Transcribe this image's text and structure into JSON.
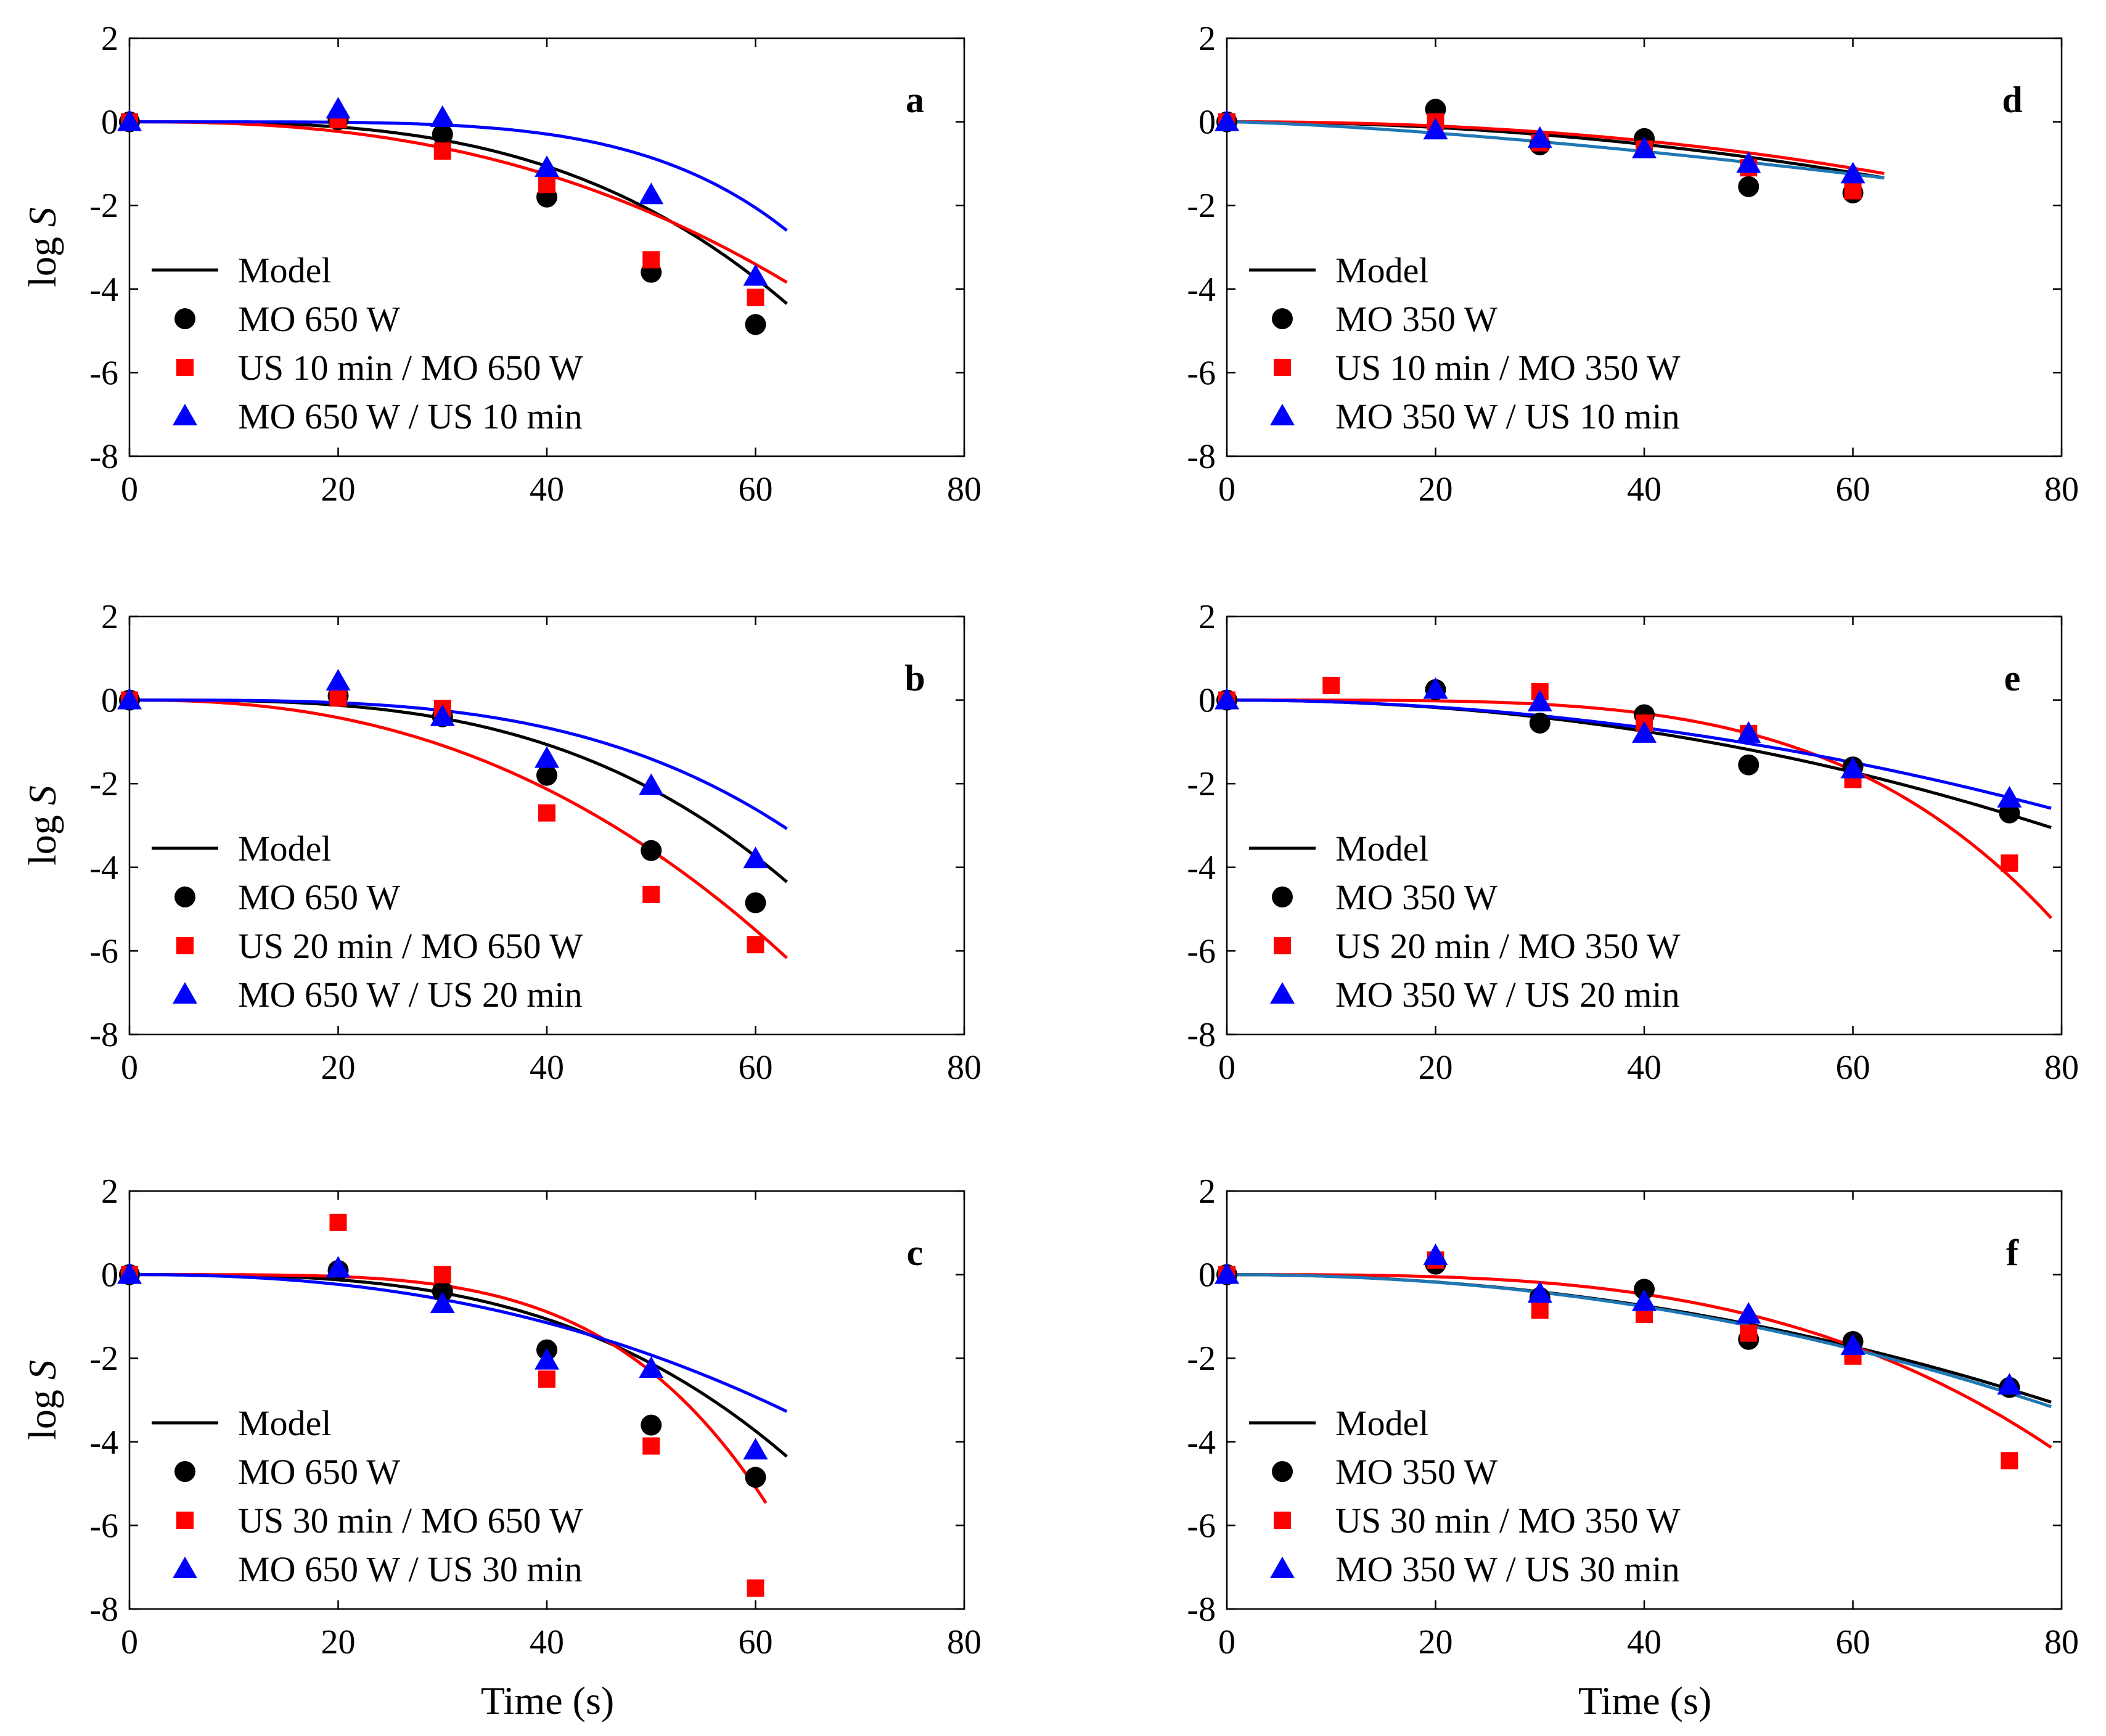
{
  "figure": {
    "xlabel": "Time (s)",
    "ylabel_main": "log",
    "ylabel_var": "S"
  },
  "colors": {
    "black": "#000000",
    "red": "#ff0000",
    "blue": "#0000ff",
    "teal": "#1f77b4"
  },
  "chart_data": [
    {
      "panel": "a",
      "type": "scatter",
      "xlim": [
        0,
        80
      ],
      "ylim": [
        -8,
        2
      ],
      "xticks": [
        0,
        20,
        40,
        60,
        80
      ],
      "yticks": [
        -8,
        -6,
        -4,
        -2,
        0,
        2
      ],
      "legend_position": "bottom-left",
      "legend": [
        "Model",
        "MO 650 W",
        "US 10 min / MO 650 W",
        "MO 650 W / US 10 min"
      ],
      "series": [
        {
          "name": "MO 650 W",
          "marker": "circle",
          "color": "black",
          "x": [
            0,
            20,
            30,
            40,
            50,
            60
          ],
          "y": [
            0,
            0.05,
            -0.3,
            -1.8,
            -3.6,
            -4.85
          ],
          "model": {
            "x_max": 63,
            "a": 1.15e-05,
            "n": 3.1
          }
        },
        {
          "name": "US 10 min / MO 650 W",
          "marker": "square",
          "color": "red",
          "x": [
            0,
            20,
            30,
            40,
            50,
            60
          ],
          "y": [
            0,
            0.05,
            -0.7,
            -1.5,
            -3.3,
            -4.2
          ],
          "model": {
            "x_max": 63,
            "a": 0.00015,
            "n": 2.45
          }
        },
        {
          "name": "MO 650 W / US 10 min",
          "marker": "triangle",
          "color": "blue",
          "x": [
            0,
            20,
            30,
            40,
            50,
            60
          ],
          "y": [
            0,
            0.3,
            0.1,
            -1.1,
            -1.75,
            -3.7
          ],
          "model": {
            "x_max": 63,
            "a": 6e-09,
            "n": 4.8
          }
        }
      ]
    },
    {
      "panel": "b",
      "type": "scatter",
      "xlim": [
        0,
        80
      ],
      "ylim": [
        -8,
        2
      ],
      "xticks": [
        0,
        20,
        40,
        60,
        80
      ],
      "yticks": [
        -8,
        -6,
        -4,
        -2,
        0,
        2
      ],
      "legend_position": "bottom-left",
      "legend": [
        "Model",
        "MO 650 W",
        "US 20 min / MO 650 W",
        "MO 650 W / US 20 min"
      ],
      "series": [
        {
          "name": "MO 650 W",
          "marker": "circle",
          "color": "black",
          "x": [
            0,
            20,
            30,
            40,
            50,
            60
          ],
          "y": [
            0,
            0.1,
            -0.4,
            -1.8,
            -3.6,
            -4.85
          ],
          "model": {
            "x_max": 63,
            "a": 1.15e-05,
            "n": 3.1
          }
        },
        {
          "name": "US 20 min / MO 650 W",
          "marker": "square",
          "color": "red",
          "x": [
            0,
            20,
            30,
            40,
            50,
            60
          ],
          "y": [
            0,
            0.05,
            -0.2,
            -2.7,
            -4.65,
            -5.85
          ],
          "model": {
            "x_max": 63,
            "a": 0.00038,
            "n": 2.34
          }
        },
        {
          "name": "MO 650 W / US 20 min",
          "marker": "triangle",
          "color": "blue",
          "x": [
            0,
            20,
            30,
            40,
            50,
            60
          ],
          "y": [
            0,
            0.45,
            -0.4,
            -1.4,
            -2.05,
            -3.8
          ],
          "model": {
            "x_max": 63,
            "a": 2.55e-06,
            "n": 3.38
          }
        }
      ]
    },
    {
      "panel": "c",
      "type": "scatter",
      "xlim": [
        0,
        80
      ],
      "ylim": [
        -8,
        2
      ],
      "xticks": [
        0,
        20,
        40,
        60,
        80
      ],
      "yticks": [
        -8,
        -6,
        -4,
        -2,
        0,
        2
      ],
      "legend_position": "bottom-left",
      "legend": [
        "Model",
        "MO 650 W",
        "US 30 min / MO 650 W",
        "MO 650 W / US 30 min"
      ],
      "series": [
        {
          "name": "MO 650 W",
          "marker": "circle",
          "color": "black",
          "x": [
            0,
            20,
            30,
            40,
            50,
            60
          ],
          "y": [
            0,
            0.1,
            -0.4,
            -1.8,
            -3.6,
            -4.85
          ],
          "model": {
            "x_max": 63,
            "a": 1.15e-05,
            "n": 3.1
          }
        },
        {
          "name": "US 30 min / MO 650 W",
          "marker": "square",
          "color": "red",
          "x": [
            0,
            20,
            30,
            40,
            50,
            60
          ],
          "y": [
            0,
            1.25,
            0,
            -2.5,
            -4.1,
            -7.5
          ],
          "model": {
            "x_max": 61,
            "a": 1.15e-07,
            "n": 4.3
          }
        },
        {
          "name": "MO 650 W / US 30 min",
          "marker": "triangle",
          "color": "blue",
          "x": [
            0,
            20,
            30,
            40,
            50,
            60
          ],
          "y": [
            0,
            0.15,
            -0.7,
            -2.05,
            -2.25,
            -4.2
          ],
          "model": {
            "x_max": 63,
            "a": 0.000238,
            "n": 2.3
          }
        }
      ]
    },
    {
      "panel": "d",
      "type": "scatter",
      "xlim": [
        0,
        80
      ],
      "ylim": [
        -8,
        2
      ],
      "xticks": [
        0,
        20,
        40,
        60,
        80
      ],
      "yticks": [
        -8,
        -6,
        -4,
        -2,
        0,
        2
      ],
      "legend_position": "bottom-left",
      "legend": [
        "Model",
        "MO 350 W",
        "US 10 min / MO 350 W",
        "MO 350 W / US 10 min"
      ],
      "series": [
        {
          "name": "MO 350 W",
          "marker": "circle",
          "color": "black",
          "x": [
            0,
            20,
            30,
            40,
            50,
            60
          ],
          "y": [
            0,
            0.3,
            -0.55,
            -0.4,
            -1.55,
            -1.7
          ],
          "model": {
            "x_max": 63,
            "a": 0.000338,
            "n": 2.0
          }
        },
        {
          "name": "US 10 min / MO 350 W",
          "marker": "square",
          "color": "red",
          "x": [
            0,
            20,
            30,
            40,
            50,
            60
          ],
          "y": [
            0,
            0,
            -0.5,
            -0.65,
            -1.1,
            -1.65
          ],
          "model": {
            "x_max": 63,
            "a": 0.000136,
            "n": 2.2
          }
        },
        {
          "name": "MO 350 W / US 10 min",
          "marker": "triangle",
          "color": "blue",
          "x": [
            0,
            20,
            30,
            40,
            50,
            60
          ],
          "y": [
            0,
            -0.2,
            -0.4,
            -0.65,
            -1.0,
            -1.25
          ],
          "model": {
            "x_max": 63,
            "a": 0.00406,
            "n": 1.4,
            "color": "teal"
          }
        }
      ]
    },
    {
      "panel": "e",
      "type": "scatter",
      "xlim": [
        0,
        80
      ],
      "ylim": [
        -8,
        2
      ],
      "xticks": [
        0,
        20,
        40,
        60,
        80
      ],
      "yticks": [
        -8,
        -6,
        -4,
        -2,
        0,
        2
      ],
      "legend_position": "bottom-left",
      "legend": [
        "Model",
        "MO 350 W",
        "US 20 min / MO 350 W",
        "MO 350 W / US 20 min"
      ],
      "series": [
        {
          "name": "MO 350 W",
          "marker": "circle",
          "color": "black",
          "x": [
            0,
            20,
            30,
            40,
            50,
            60,
            75
          ],
          "y": [
            0,
            0.25,
            -0.55,
            -0.35,
            -1.55,
            -1.6,
            -2.7
          ],
          "model": {
            "x_max": 79,
            "a": 0.00036,
            "n": 2.07
          }
        },
        {
          "name": "US 20 min / MO 350 W",
          "marker": "square",
          "color": "red",
          "x": [
            0,
            10,
            30,
            40,
            50,
            60,
            75
          ],
          "y": [
            0,
            0.35,
            0.2,
            -0.55,
            -0.8,
            -1.9,
            -3.9
          ],
          "model": {
            "x_max": 79,
            "a": 8.65e-08,
            "n": 4.1
          }
        },
        {
          "name": "MO 350 W / US 20 min",
          "marker": "triangle",
          "color": "blue",
          "x": [
            0,
            20,
            30,
            40,
            50,
            60,
            75
          ],
          "y": [
            0,
            0.25,
            -0.05,
            -0.8,
            -0.8,
            -1.65,
            -2.35
          ],
          "model": {
            "x_max": 79,
            "a": 0.000415,
            "n": 2.0
          }
        }
      ]
    },
    {
      "panel": "f",
      "type": "scatter",
      "xlim": [
        0,
        80
      ],
      "ylim": [
        -8,
        2
      ],
      "xticks": [
        0,
        20,
        40,
        60,
        80
      ],
      "yticks": [
        -8,
        -6,
        -4,
        -2,
        0,
        2
      ],
      "legend_position": "bottom-left",
      "legend": [
        "Model",
        "MO 350 W",
        "US 30 min / MO 350 W",
        "MO 350 W / US 30 min"
      ],
      "series": [
        {
          "name": "MO 350 W",
          "marker": "circle",
          "color": "black",
          "x": [
            0,
            20,
            30,
            40,
            50,
            60,
            75
          ],
          "y": [
            0,
            0.25,
            -0.55,
            -0.35,
            -1.55,
            -1.6,
            -2.7
          ],
          "model": {
            "x_max": 79,
            "a": 0.00036,
            "n": 2.07
          }
        },
        {
          "name": "US 30 min / MO 350 W",
          "marker": "square",
          "color": "red",
          "x": [
            0,
            20,
            30,
            40,
            50,
            60,
            75
          ],
          "y": [
            0,
            0.35,
            -0.85,
            -0.95,
            -1.4,
            -1.95,
            -4.45
          ],
          "model": {
            "x_max": 79,
            "a": 3.5e-06,
            "n": 3.2
          }
        },
        {
          "name": "MO 350 W / US 30 min",
          "marker": "triangle",
          "color": "blue",
          "x": [
            0,
            20,
            30,
            40,
            50,
            60,
            75
          ],
          "y": [
            0,
            0.45,
            -0.45,
            -0.65,
            -0.95,
            -1.7,
            -2.65
          ],
          "model": {
            "x_max": 79,
            "a": 0.000357,
            "n": 2.08,
            "color": "teal"
          }
        }
      ]
    }
  ]
}
